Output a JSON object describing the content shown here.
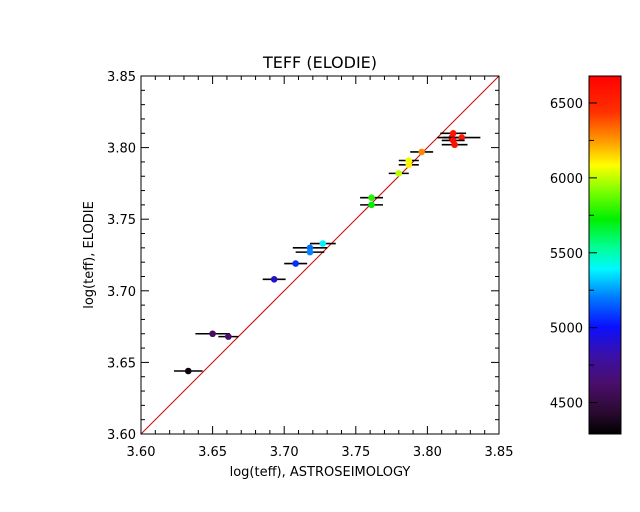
{
  "chart_data": {
    "type": "scatter",
    "title": "TEFF (ELODIE)",
    "xlabel": "log(teff), ASTROSEIMOLOGY",
    "ylabel": "log(teff), ELODIE",
    "xlim": [
      3.6,
      3.85
    ],
    "ylim": [
      3.6,
      3.85
    ],
    "xticks": [
      "3.60",
      "3.65",
      "3.70",
      "3.75",
      "3.80",
      "3.85"
    ],
    "yticks": [
      "3.60",
      "3.65",
      "3.70",
      "3.75",
      "3.80",
      "3.85"
    ],
    "xtick_values": [
      3.6,
      3.65,
      3.7,
      3.75,
      3.8,
      3.85
    ],
    "ytick_values": [
      3.6,
      3.65,
      3.7,
      3.75,
      3.8,
      3.85
    ],
    "grid": false,
    "reference_line": {
      "description": "one-to-one",
      "from": [
        3.6,
        3.6
      ],
      "to": [
        3.85,
        3.85
      ],
      "color": "#cc0000"
    },
    "colorbar": {
      "range": [
        4290,
        6680
      ],
      "ticks": [
        "4500",
        "5000",
        "5500",
        "6000",
        "6500"
      ],
      "tick_values": [
        4500,
        5000,
        5500,
        6000,
        6500
      ],
      "minor_tick_values": [
        4750,
        5250,
        5750,
        6250
      ],
      "placement": "right"
    },
    "points": [
      {
        "x": 3.633,
        "y": 3.644,
        "xerr": 0.01,
        "teff": 4330
      },
      {
        "x": 3.65,
        "y": 3.67,
        "xerr": 0.012,
        "teff": 4600
      },
      {
        "x": 3.661,
        "y": 3.668,
        "xerr": 0.007,
        "teff": 4620
      },
      {
        "x": 3.693,
        "y": 3.708,
        "xerr": 0.008,
        "teff": 4900
      },
      {
        "x": 3.708,
        "y": 3.719,
        "xerr": 0.008,
        "teff": 5060
      },
      {
        "x": 3.718,
        "y": 3.73,
        "xerr": 0.012,
        "teff": 5180
      },
      {
        "x": 3.718,
        "y": 3.727,
        "xerr": 0.01,
        "teff": 5220
      },
      {
        "x": 3.727,
        "y": 3.733,
        "xerr": 0.009,
        "teff": 5380
      },
      {
        "x": 3.761,
        "y": 3.765,
        "xerr": 0.008,
        "teff": 5780
      },
      {
        "x": 3.761,
        "y": 3.76,
        "xerr": 0.008,
        "teff": 5720
      },
      {
        "x": 3.78,
        "y": 3.782,
        "xerr": 0.007,
        "teff": 5990
      },
      {
        "x": 3.787,
        "y": 3.791,
        "xerr": 0.007,
        "teff": 6060
      },
      {
        "x": 3.787,
        "y": 3.788,
        "xerr": 0.007,
        "teff": 6100
      },
      {
        "x": 3.796,
        "y": 3.797,
        "xerr": 0.008,
        "teff": 6280
      },
      {
        "x": 3.818,
        "y": 3.81,
        "xerr": 0.009,
        "teff": 6600
      },
      {
        "x": 3.817,
        "y": 3.807,
        "xerr": 0.01,
        "teff": 6580
      },
      {
        "x": 3.824,
        "y": 3.807,
        "xerr": 0.013,
        "teff": 6560
      },
      {
        "x": 3.818,
        "y": 3.805,
        "xerr": 0.008,
        "teff": 6620
      },
      {
        "x": 3.819,
        "y": 3.802,
        "xerr": 0.009,
        "teff": 6600
      }
    ]
  }
}
